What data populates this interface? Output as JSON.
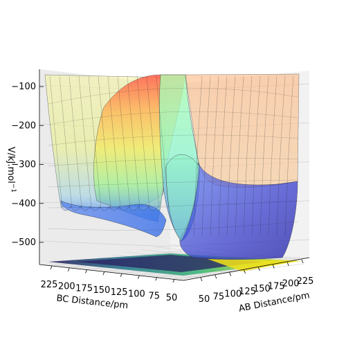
{
  "chart_data": {
    "type": "surface3d",
    "title": "",
    "zlabel": "V/kJ.mol$^{-1}$",
    "zlabel_display": "V/kJ.mol",
    "zlabel_superscript": "−1",
    "xlabel": "AB Distance/pm",
    "ylabel": "BC Distance/pm",
    "z_ticks": [
      "−100",
      "−200",
      "−300",
      "−400",
      "−500"
    ],
    "z_tick_values": [
      -100,
      -200,
      -300,
      -400,
      -500
    ],
    "ab_ticks": [
      "50",
      "75",
      "100",
      "125",
      "150",
      "175",
      "200",
      "225"
    ],
    "bc_ticks": [
      "225",
      "200",
      "175",
      "150",
      "125",
      "100",
      "75",
      "50"
    ],
    "zlim": [
      -560,
      -80
    ],
    "ab_range": [
      50,
      230
    ],
    "bc_range": [
      50,
      230
    ],
    "grid": true,
    "colormap_surface": "jet",
    "colormap_contour": "viridis",
    "colors": {
      "pane_left": "#ebebeb",
      "pane_right": "#f0f0f0",
      "grid": "#d0d0d0",
      "wire": "#222222"
    }
  }
}
